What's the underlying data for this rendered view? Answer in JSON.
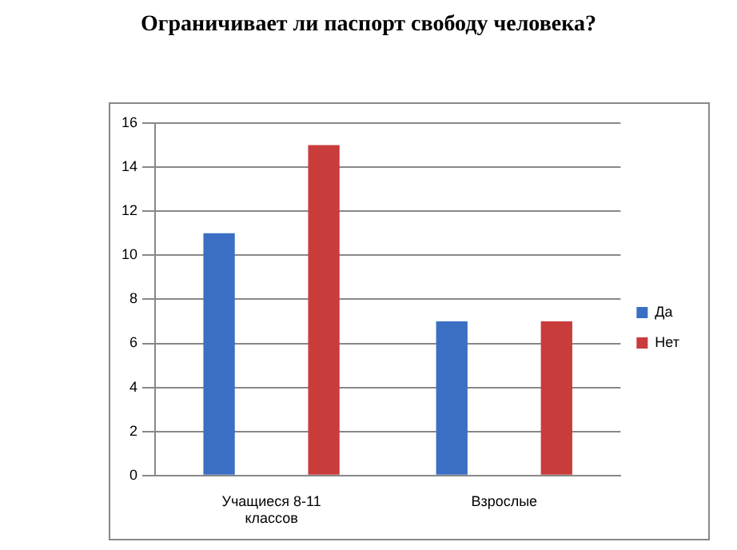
{
  "chart_data": {
    "type": "bar",
    "title": "Ограничивает ли паспорт свободу человека?",
    "categories": [
      "Учащиеся 8-11 классов",
      "Взрослые"
    ],
    "series": [
      {
        "name": "Да",
        "color": "#3a6fc4",
        "values": [
          11,
          7
        ]
      },
      {
        "name": "Нет",
        "color": "#c83c3c",
        "values": [
          15,
          7
        ]
      }
    ],
    "ylim": [
      0,
      16
    ],
    "yticks": [
      0,
      2,
      4,
      6,
      8,
      10,
      12,
      14,
      16
    ],
    "grid": "y",
    "legend": "right"
  }
}
